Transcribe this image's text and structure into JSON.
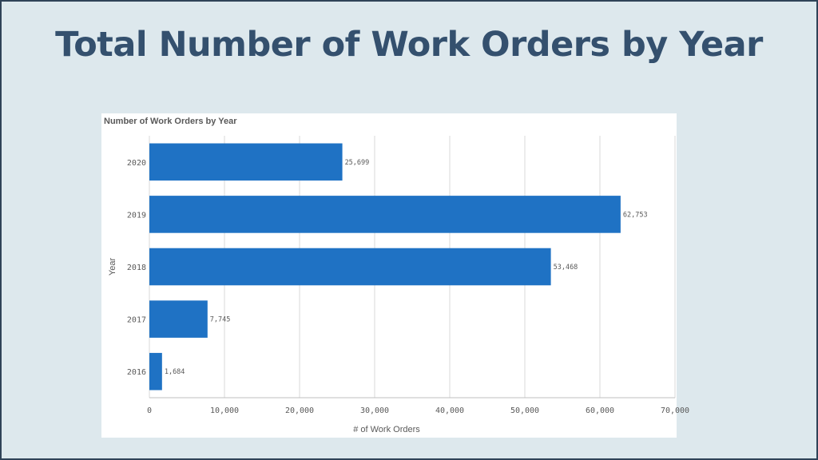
{
  "slide": {
    "title": "Total Number of Work Orders by Year"
  },
  "chart_data": {
    "type": "bar",
    "orientation": "horizontal",
    "title": "Number of Work Orders by Year",
    "xlabel": "# of Work Orders",
    "ylabel": "Year",
    "categories": [
      "2020",
      "2019",
      "2018",
      "2017",
      "2016"
    ],
    "values": [
      25699,
      62753,
      53468,
      7745,
      1684
    ],
    "value_labels": [
      "25,699",
      "62,753",
      "53,468",
      "7,745",
      "1,684"
    ],
    "xlim": [
      0,
      70000
    ],
    "x_ticks": [
      0,
      10000,
      20000,
      30000,
      40000,
      50000,
      60000,
      70000
    ],
    "x_tick_labels": [
      "0",
      "10,000",
      "20,000",
      "30,000",
      "40,000",
      "50,000",
      "60,000",
      "70,000"
    ],
    "grid": "vertical",
    "bar_color": "#1f72c4"
  }
}
